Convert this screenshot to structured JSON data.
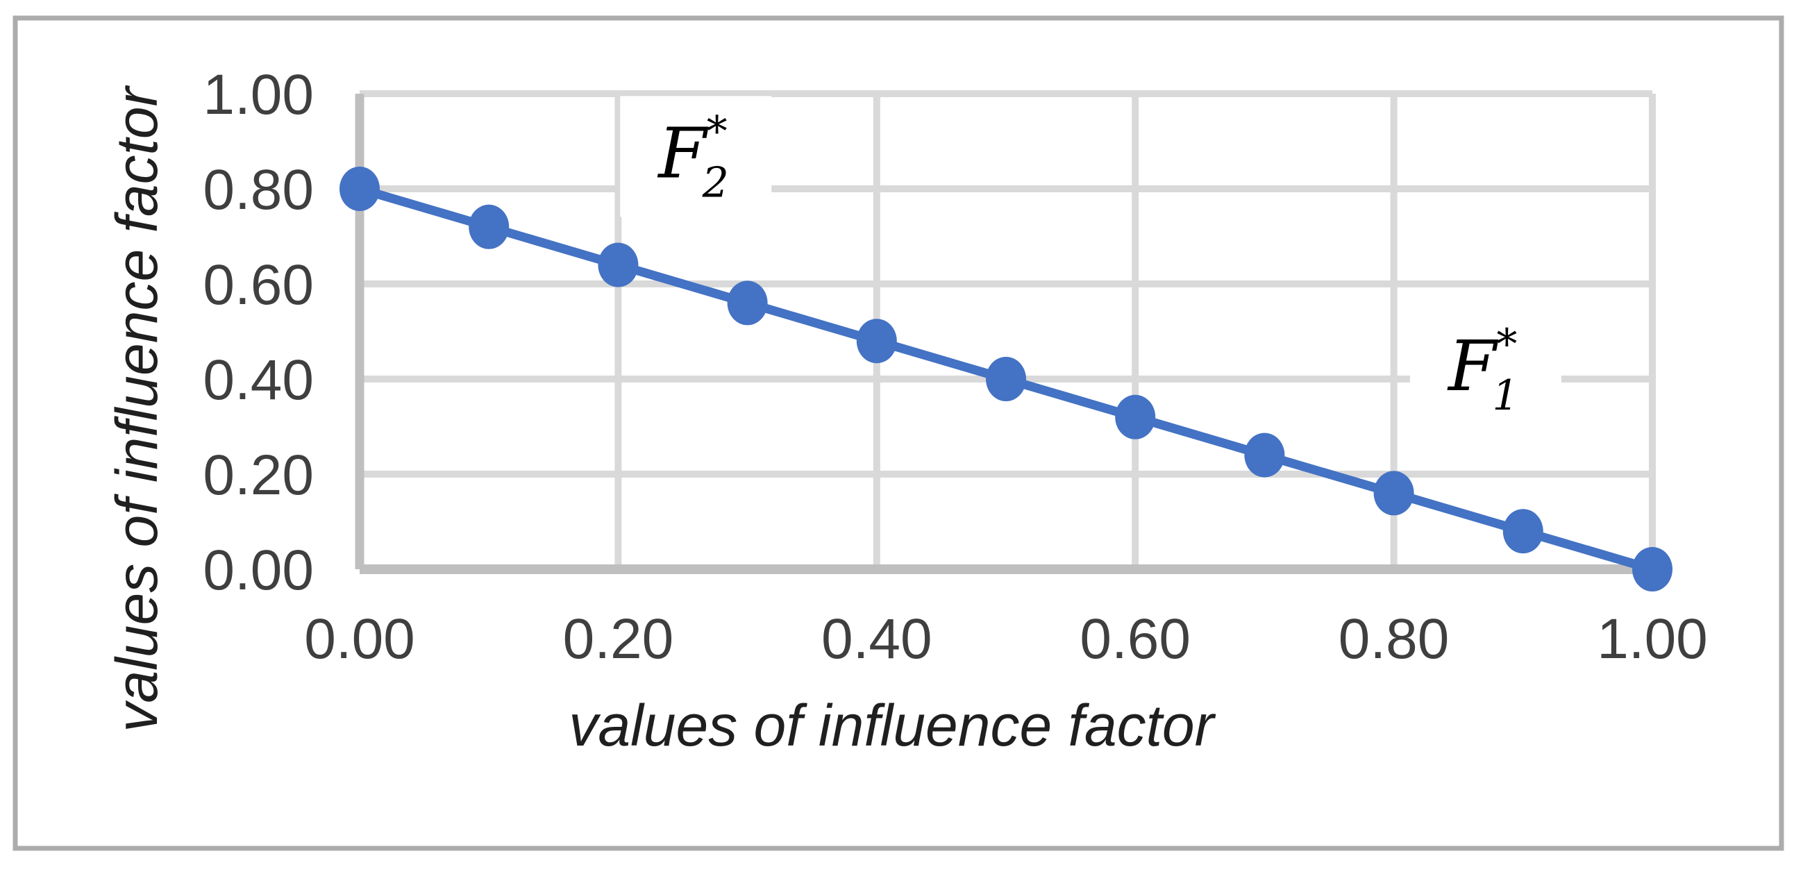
{
  "figure": {
    "background": "#FFFFFF",
    "border_color": "#ACACAC"
  },
  "chart_data": {
    "type": "line",
    "title": "",
    "xlabel": "values of influence factor",
    "ylabel": "values of influence factor",
    "x": [
      0.0,
      0.1,
      0.2,
      0.3,
      0.4,
      0.5,
      0.6,
      0.7,
      0.8,
      0.9,
      1.0
    ],
    "series": [
      {
        "values": [
          0.8,
          0.72,
          0.64,
          0.56,
          0.48,
          0.4,
          0.32,
          0.24,
          0.16,
          0.08,
          0.0
        ],
        "color": "#4472C4",
        "marker": "circle"
      }
    ],
    "xticks": [
      "0.00",
      "0.20",
      "0.40",
      "0.60",
      "0.80",
      "1.00"
    ],
    "yticks": [
      "0.00",
      "0.20",
      "0.40",
      "0.60",
      "0.80",
      "1.00"
    ],
    "xlim": [
      0,
      1
    ],
    "ylim": [
      0,
      1
    ],
    "grid": true,
    "legend_position": "none",
    "annotations": [
      {
        "base": "F",
        "sub": "2",
        "sup": "*",
        "x": 0.259,
        "y": 0.871
      },
      {
        "base": "F",
        "sub": "1",
        "sup": "*",
        "x": 0.87,
        "y": 0.423
      }
    ],
    "colors": {
      "series": "#4472C4",
      "gridline": "#D9D9D9",
      "axis_line": "#BFBFBF",
      "tick_text": "#3F3F3F",
      "title_text": "#1F1F1F",
      "annotation_text": "#000000",
      "halo": "#FFFFFF"
    }
  }
}
